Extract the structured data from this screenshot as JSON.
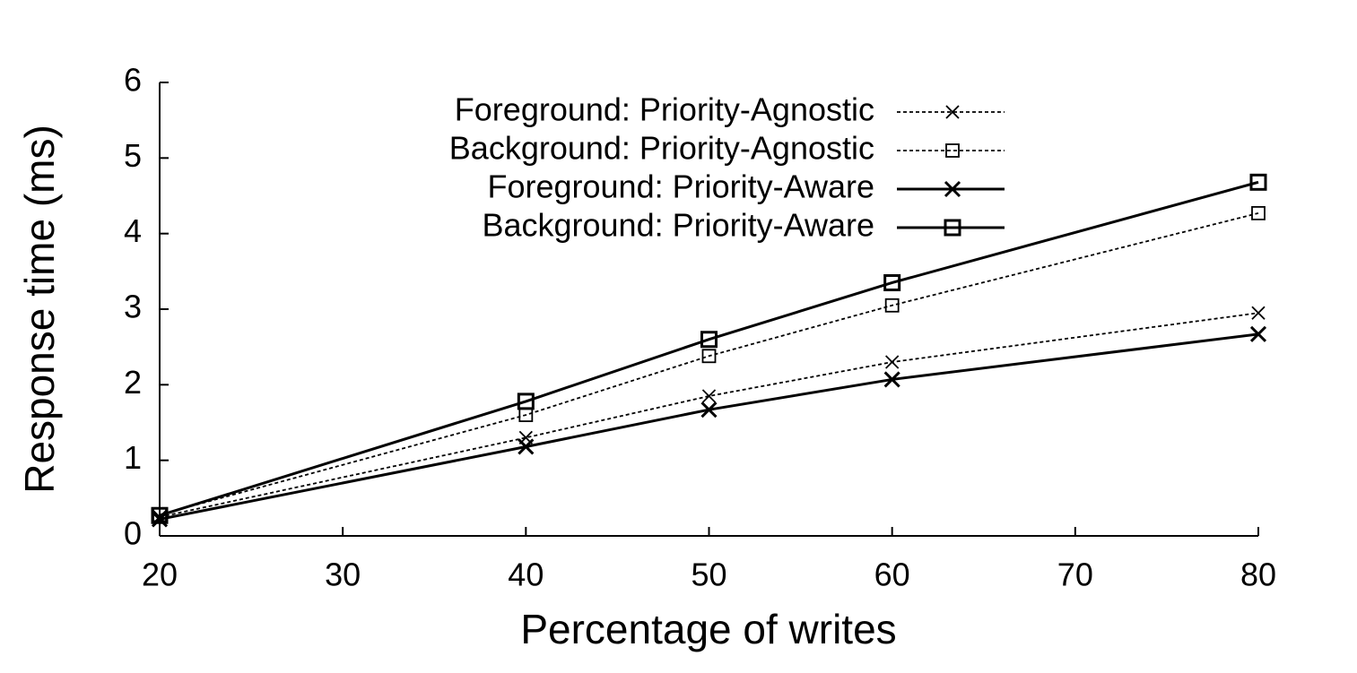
{
  "chart_data": {
    "type": "line",
    "x_label": "Percentage of writes",
    "y_label": "Response time (ms)",
    "x": [
      20,
      40,
      50,
      60,
      80
    ],
    "series": [
      {
        "name": "Foreground: Priority-Agnostic",
        "color": "#000000",
        "dash": "dotted",
        "marker": "x",
        "values": [
          0.25,
          1.3,
          1.85,
          2.3,
          2.95
        ]
      },
      {
        "name": "Background: Priority-Agnostic",
        "color": "#000000",
        "dash": "dotted",
        "marker": "square",
        "values": [
          0.28,
          1.6,
          2.38,
          3.05,
          4.27
        ]
      },
      {
        "name": "Foreground: Priority-Aware",
        "color": "#000000",
        "dash": "solid",
        "marker": "x",
        "values": [
          0.22,
          1.18,
          1.67,
          2.07,
          2.67
        ]
      },
      {
        "name": "Background: Priority-Aware",
        "color": "#000000",
        "dash": "solid",
        "marker": "square",
        "values": [
          0.27,
          1.78,
          2.6,
          3.35,
          4.68
        ]
      }
    ],
    "xlim": [
      20,
      80
    ],
    "xticks": [
      20,
      30,
      40,
      50,
      60,
      70,
      80
    ],
    "ylim": [
      0,
      6
    ],
    "yticks": [
      0,
      1,
      2,
      3,
      4,
      5,
      6
    ],
    "legend_position": "top"
  }
}
